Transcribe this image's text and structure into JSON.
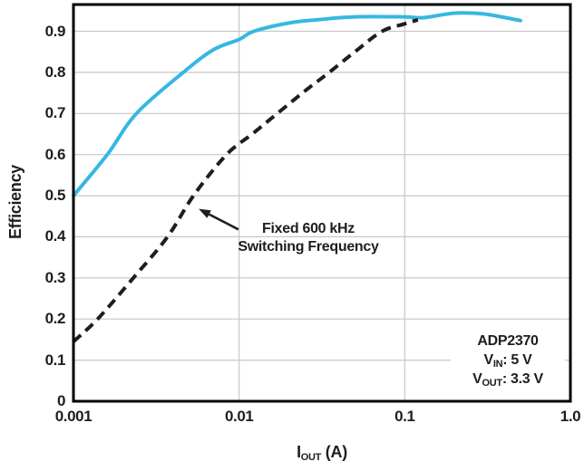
{
  "figure": {
    "background": "#ffffff",
    "frame_color": "#000000",
    "grid_color": "#c7c7c7",
    "text_color": "#1e1e1e"
  },
  "chart_data": {
    "type": "line",
    "title": "",
    "ylabel": "Efficiency",
    "xlabel": {
      "main": "I",
      "sub": "OUT",
      "rest": " (A)"
    },
    "x_scale": "log",
    "xlim": [
      0.001,
      1.0
    ],
    "ylim": [
      0,
      0.965
    ],
    "grid": true,
    "legend": "none",
    "x_ticks": [
      {
        "v": 0.001,
        "label": "0.001"
      },
      {
        "v": 0.01,
        "label": "0.01"
      },
      {
        "v": 0.1,
        "label": "0.1"
      },
      {
        "v": 1.0,
        "label": "1.0"
      }
    ],
    "y_ticks": [
      {
        "v": 0,
        "label": "0"
      },
      {
        "v": 0.1,
        "label": "0.1"
      },
      {
        "v": 0.2,
        "label": "0.2"
      },
      {
        "v": 0.3,
        "label": "0.3"
      },
      {
        "v": 0.4,
        "label": "0.4"
      },
      {
        "v": 0.5,
        "label": "0.5"
      },
      {
        "v": 0.6,
        "label": "0.6"
      },
      {
        "v": 0.7,
        "label": "0.7"
      },
      {
        "v": 0.8,
        "label": "0.8"
      },
      {
        "v": 0.9,
        "label": "0.9"
      }
    ],
    "x_gridlines": [
      0.01,
      0.1
    ],
    "y_gridlines": [
      0.1,
      0.2,
      0.3,
      0.4,
      0.5,
      0.6,
      0.7,
      0.8,
      0.9
    ],
    "series": [
      {
        "name": "solid-cyan-curve",
        "color": "#35b8e1",
        "style": "solid",
        "width": 4,
        "x": [
          0.001,
          0.0016,
          0.0024,
          0.0046,
          0.007,
          0.01,
          0.0123,
          0.02,
          0.03,
          0.05,
          0.1,
          0.13,
          0.2,
          0.3,
          0.5
        ],
        "y": [
          0.5,
          0.6,
          0.7,
          0.8,
          0.855,
          0.88,
          0.9,
          0.92,
          0.928,
          0.935,
          0.935,
          0.933,
          0.944,
          0.942,
          0.926
        ]
      },
      {
        "name": "dashed-black-curve",
        "color": "#1e1e1e",
        "style": "dashed",
        "width": 4,
        "x": [
          0.001,
          0.0014,
          0.0023,
          0.0037,
          0.0053,
          0.0084,
          0.012,
          0.017,
          0.025,
          0.035,
          0.05,
          0.073,
          0.1,
          0.12
        ],
        "y": [
          0.145,
          0.2,
          0.3,
          0.4,
          0.5,
          0.6,
          0.65,
          0.7,
          0.755,
          0.8,
          0.85,
          0.9,
          0.918,
          0.928
        ]
      }
    ],
    "annotation": {
      "line1": "Fixed 600 kHz",
      "line2": "Switching Frequency",
      "arrow": {
        "x1": 0.0099,
        "y1": 0.418,
        "x2": 0.0057,
        "y2": 0.468
      }
    },
    "device_info": {
      "part": "ADP2370",
      "vin": {
        "main": "V",
        "sub": "IN",
        "rest": ": 5 V"
      },
      "vout": {
        "main": "V",
        "sub": "OUT",
        "rest": ": 3.3 V"
      }
    }
  }
}
